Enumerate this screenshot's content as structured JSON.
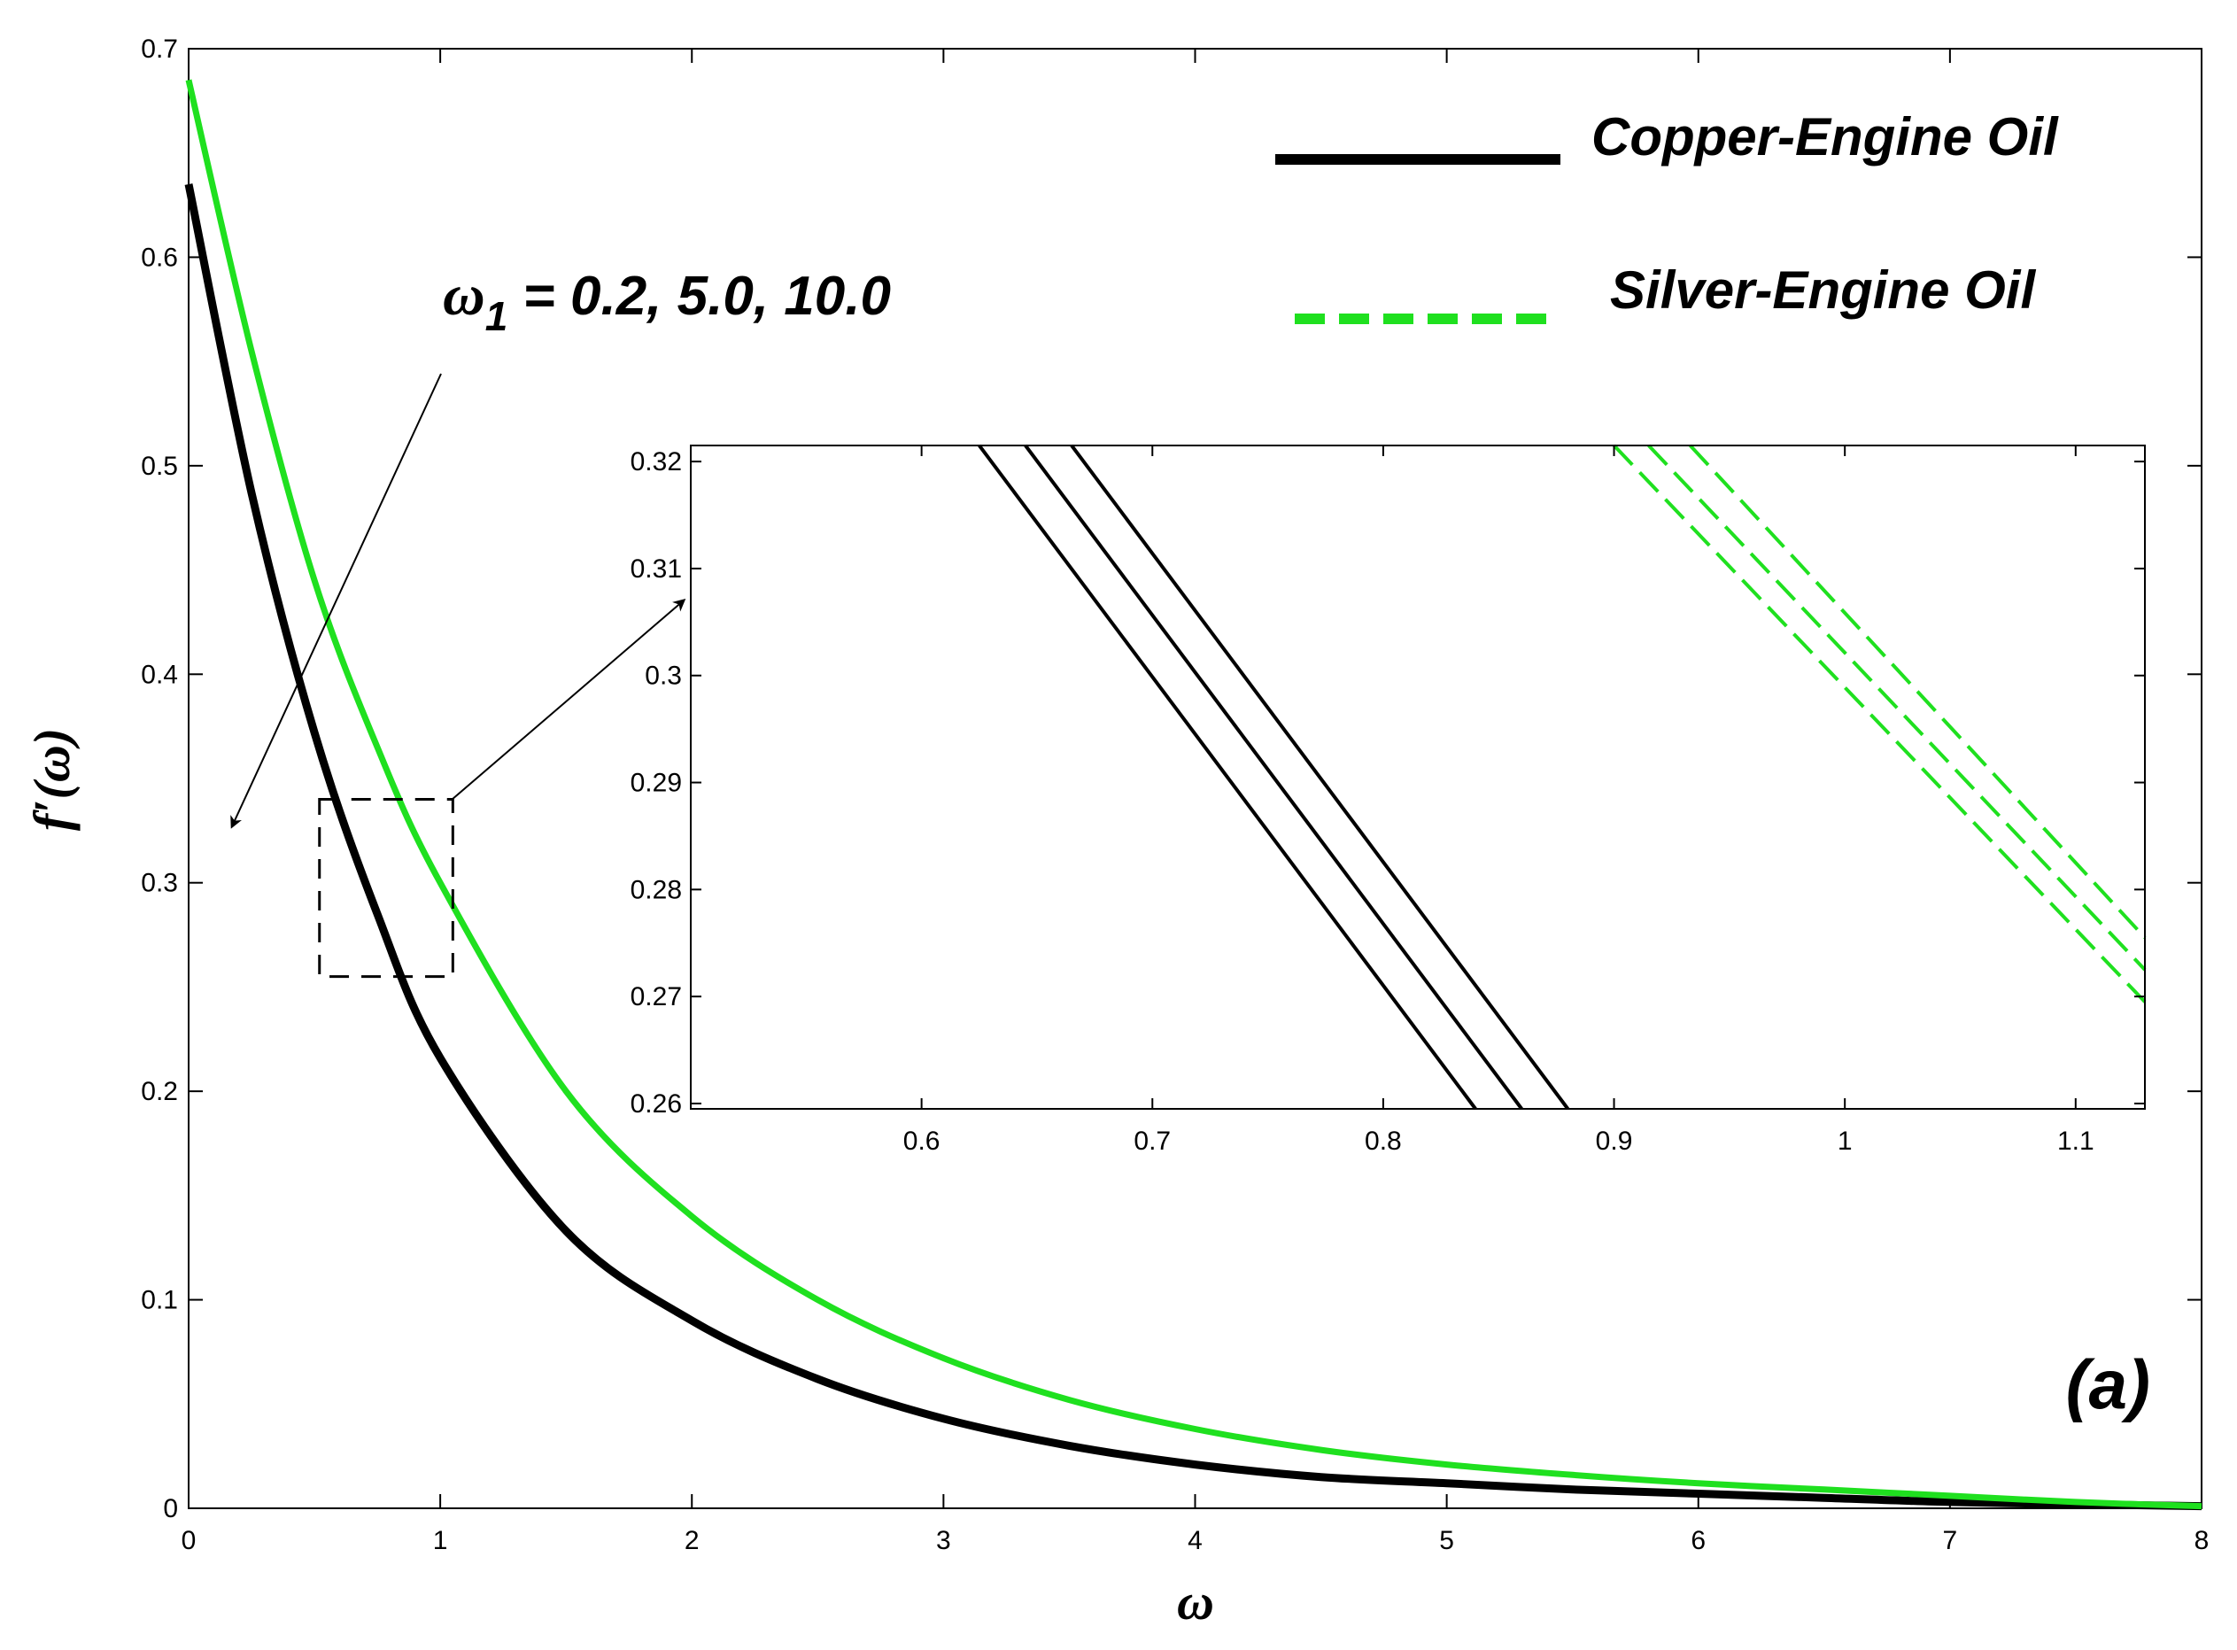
{
  "chart_data": {
    "type": "line",
    "xlabel": "ω",
    "ylabel": "f′(ω)",
    "xlim": [
      0,
      8
    ],
    "ylim": [
      0,
      0.7
    ],
    "xticks": [
      "0",
      "1",
      "2",
      "3",
      "4",
      "5",
      "6",
      "7",
      "8"
    ],
    "yticks": [
      "0",
      "0.1",
      "0.2",
      "0.3",
      "0.4",
      "0.5",
      "0.6",
      "0.7"
    ],
    "grid": false,
    "legend_placement": "top-right",
    "legend": [
      {
        "label": "Copper-Engine Oil",
        "color": "#000000",
        "style": "solid"
      },
      {
        "label": "Silver-Engine Oil",
        "color": "#1fe01f",
        "style": "dashed"
      }
    ],
    "annotation": {
      "symbol": "ω",
      "subscript": "1",
      "text": " = 0.2, 5.0, 10.0"
    },
    "panel_label": "(a)",
    "series": [
      {
        "name": "Copper-Engine Oil",
        "color": "#000000",
        "x": [
          0,
          0.25,
          0.5,
          0.75,
          1,
          1.5,
          2,
          2.5,
          3,
          3.5,
          4,
          4.5,
          5,
          5.5,
          6,
          6.5,
          7,
          7.5,
          8
        ],
        "y": [
          0.635,
          0.487,
          0.372,
          0.285,
          0.216,
          0.133,
          0.09,
          0.062,
          0.043,
          0.03,
          0.021,
          0.015,
          0.012,
          0.009,
          0.007,
          0.005,
          0.003,
          0.002,
          0.001
        ]
      },
      {
        "name": "Silver-Engine Oil",
        "color": "#1fe01f",
        "x": [
          0,
          0.25,
          0.5,
          0.75,
          1,
          1.5,
          2,
          2.5,
          3,
          3.5,
          4,
          4.5,
          5,
          5.5,
          6,
          6.5,
          7,
          7.5,
          8
        ],
        "y": [
          0.685,
          0.555,
          0.445,
          0.365,
          0.3,
          0.2,
          0.14,
          0.1,
          0.072,
          0.052,
          0.038,
          0.028,
          0.021,
          0.016,
          0.012,
          0.009,
          0.006,
          0.003,
          0.001
        ]
      }
    ],
    "inset": {
      "xlim": [
        0.5,
        1.13
      ],
      "ylim": [
        0.2595,
        0.3215
      ],
      "xticks": [
        "0.6",
        "0.7",
        "0.8",
        "0.9",
        "1",
        "1.1"
      ],
      "yticks": [
        "0.26",
        "0.27",
        "0.28",
        "0.29",
        "0.3",
        "0.31",
        "0.32"
      ],
      "zoom_box": {
        "x": [
          0.52,
          1.05
        ],
        "y": [
          0.255,
          0.34
        ]
      },
      "series": [
        {
          "name": "Copper-Engine Oil",
          "color": "#000000",
          "x": [
            0.625,
            0.84
          ],
          "y": [
            0.3215,
            0.2595
          ]
        },
        {
          "name": "Copper-Engine Oil",
          "color": "#000000",
          "x": [
            0.645,
            0.86
          ],
          "y": [
            0.3215,
            0.2595
          ]
        },
        {
          "name": "Copper-Engine Oil",
          "color": "#000000",
          "x": [
            0.665,
            0.88
          ],
          "y": [
            0.3215,
            0.2595
          ]
        },
        {
          "name": "Silver-Engine Oil",
          "color": "#1fe01f",
          "x": [
            0.9,
            1.13
          ],
          "y": [
            0.3215,
            0.2695
          ]
        },
        {
          "name": "Silver-Engine Oil",
          "color": "#1fe01f",
          "x": [
            0.915,
            1.13
          ],
          "y": [
            0.3215,
            0.2725
          ]
        },
        {
          "name": "Silver-Engine Oil",
          "color": "#1fe01f",
          "x": [
            0.933,
            1.13
          ],
          "y": [
            0.3215,
            0.2755
          ]
        }
      ]
    }
  }
}
